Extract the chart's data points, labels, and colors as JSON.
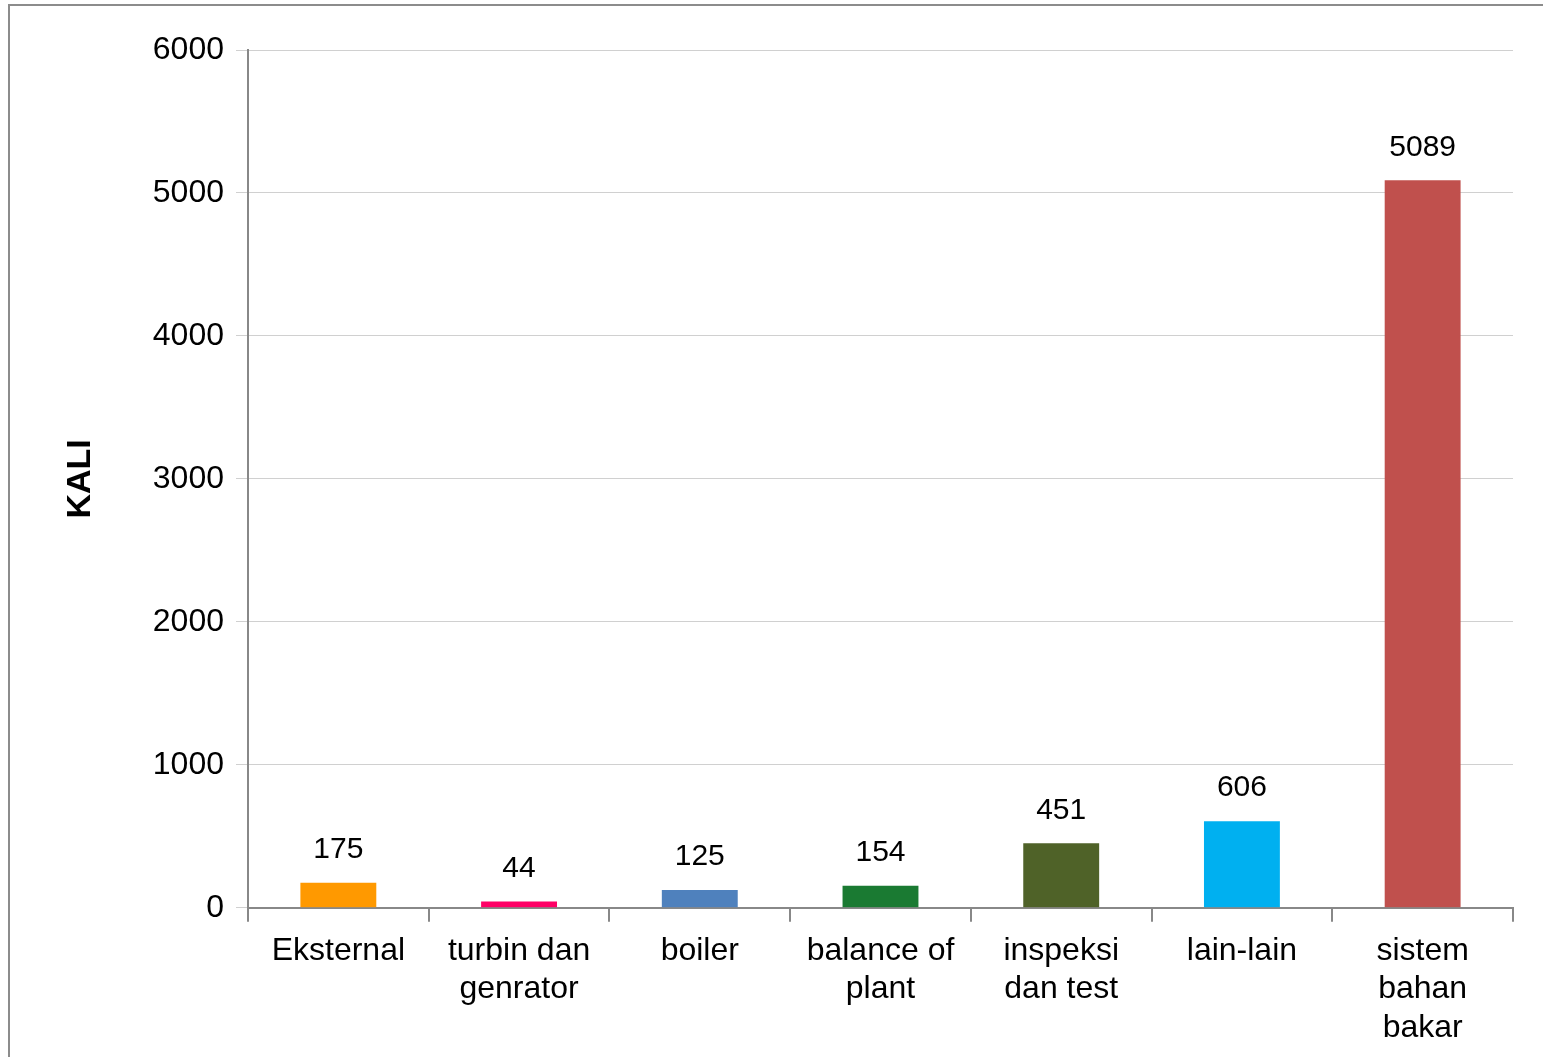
{
  "chart_data": {
    "type": "bar",
    "ylabel": "KALI",
    "categories": [
      "Eksternal",
      "turbin dan genrator",
      "boiler",
      "balance of plant",
      "inspeksi dan test",
      "lain-lain",
      "sistem bahan bakar"
    ],
    "values": [
      175,
      44,
      125,
      154,
      451,
      606,
      5089
    ],
    "colors": [
      "#ff9900",
      "#ff0066",
      "#4f81bd",
      "#1a7a32",
      "#4f6228",
      "#00b0f0",
      "#c0504d"
    ],
    "ylim": [
      0,
      6000
    ],
    "yticks": [
      0,
      1000,
      2000,
      3000,
      4000,
      5000,
      6000
    ],
    "grid": "y",
    "data_labels": true,
    "legend": false
  }
}
